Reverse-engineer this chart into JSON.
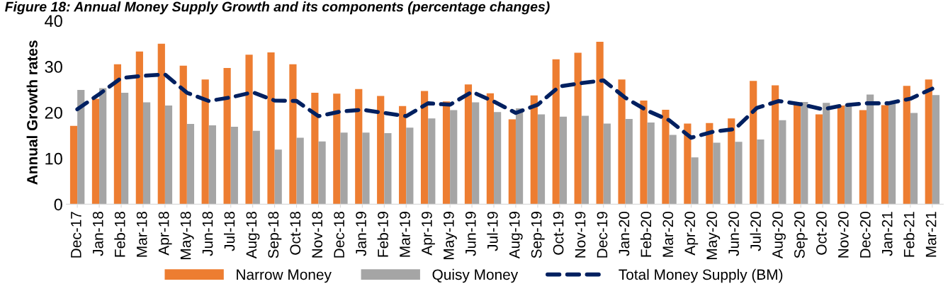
{
  "chart_data": {
    "type": "bar",
    "title": "Figure 18: Annual Money Supply Growth and its components (percentage changes)",
    "ylabel": "Annual Growth rates",
    "categories": [
      "Dec-17",
      "Jan-18",
      "Feb-18",
      "Mar-18",
      "Apr-18",
      "May-18",
      "Jun-18",
      "Jul-18",
      "Aug-18",
      "Sep-18",
      "Oct-18",
      "Nov-18",
      "Dec-18",
      "Jan-19",
      "Feb-19",
      "Mar-19",
      "Apr-19",
      "May-19",
      "Jun-19",
      "Jul-19",
      "Aug-19",
      "Sep-19",
      "Oct-19",
      "Nov-19",
      "Dec-19",
      "Jan-20",
      "Feb-20",
      "Mar-20",
      "Apr-20",
      "May-20",
      "Jun-20",
      "Jul-20",
      "Aug-20",
      "Sep-20",
      "Oct-20",
      "Nov-20",
      "Dec-20",
      "Jan-21",
      "Feb-21",
      "Mar-21"
    ],
    "series": [
      {
        "name": "Narrow Money",
        "color": "#ed7d31",
        "values": [
          17.1,
          23,
          30.5,
          33.3,
          35,
          30.2,
          27.2,
          29.7,
          32.6,
          33.1,
          30.5,
          24.3,
          24.1,
          25.1,
          23.6,
          21.4,
          24.7,
          22.4,
          26.1,
          24.2,
          18.5,
          23.7,
          31.6,
          33,
          35.4,
          27.2,
          22.6,
          20.6,
          17.6,
          17.7,
          18.7,
          26.9,
          25.9,
          21.8,
          19.6,
          21.5,
          20.5,
          21.6,
          25.8,
          27.2
        ]
      },
      {
        "name": "Quisy Money",
        "color": "#a5a5a5",
        "values": [
          24.9,
          25.3,
          24.3,
          22.2,
          21.5,
          17.5,
          17.2,
          16.9,
          16,
          11.9,
          14.5,
          13.7,
          15.6,
          15.6,
          15.5,
          16.7,
          18.7,
          20.5,
          22.2,
          20.1,
          20.9,
          19.6,
          19.1,
          19.3,
          17.6,
          18.6,
          17.8,
          15.1,
          10.2,
          13.4,
          13.6,
          14.1,
          18.3,
          22.3,
          22.1,
          21.7,
          23.9,
          21.9,
          19.9,
          23.8
        ]
      },
      {
        "name": "Total Money Supply (BM)",
        "type": "line",
        "color": "#002060",
        "line_style": "dashed",
        "values": [
          20.7,
          24,
          27.5,
          28,
          28.3,
          24.3,
          22.5,
          23.3,
          24.4,
          22.6,
          22.5,
          19.2,
          20.2,
          20.6,
          19.9,
          19.2,
          22,
          21.7,
          24.5,
          22.4,
          19.9,
          21.7,
          25.7,
          26.4,
          27,
          23.2,
          20.4,
          18.3,
          14.5,
          15.8,
          16.4,
          21,
          22.5,
          21.8,
          20.7,
          21.6,
          22,
          22,
          23,
          25.2
        ]
      }
    ],
    "ylim": [
      0,
      40
    ],
    "yticks": [
      0,
      10,
      20,
      30,
      40
    ],
    "grid": false,
    "legend": "bottom"
  }
}
